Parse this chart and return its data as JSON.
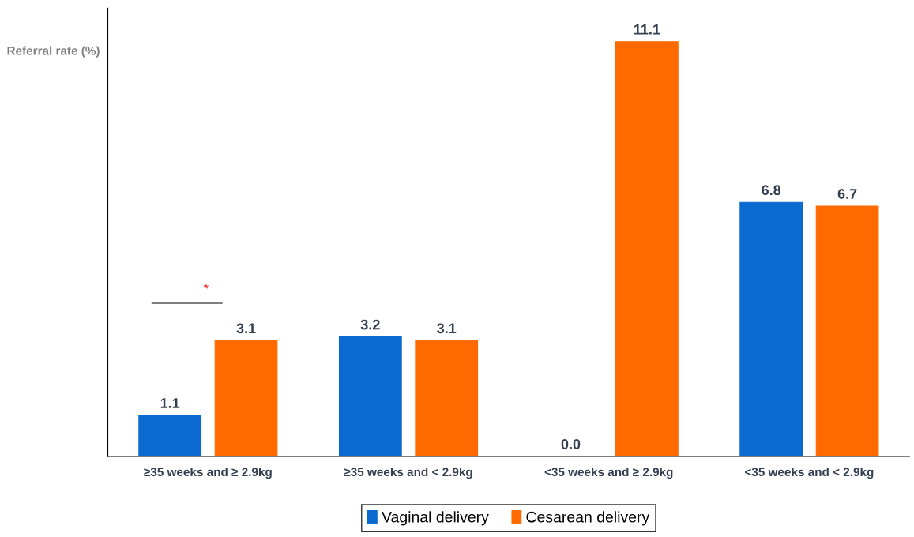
{
  "chart_data": {
    "type": "bar",
    "ylabel": "Referral rate (%)",
    "categories": [
      "≥35 weeks and ≥ 2.9kg",
      "≥35 weeks and < 2.9kg",
      "<35 weeks and ≥ 2.9kg",
      "<35 weeks and < 2.9kg"
    ],
    "series": [
      {
        "name": "Vaginal delivery",
        "color": "#0a6ad0",
        "values": [
          1.1,
          3.2,
          0.0,
          6.8
        ],
        "value_labels": [
          "1.1",
          "3.2",
          "0.0",
          "6.8"
        ]
      },
      {
        "name": "Cesarean delivery",
        "color": "#ff6a00",
        "values": [
          3.1,
          3.1,
          11.1,
          6.7
        ],
        "value_labels": [
          "3.1",
          "3.1",
          "11.1",
          "6.7"
        ]
      }
    ],
    "ylim": [
      0,
      12
    ],
    "legend": "bottom",
    "grid": false,
    "annotations": [
      "*"
    ]
  }
}
